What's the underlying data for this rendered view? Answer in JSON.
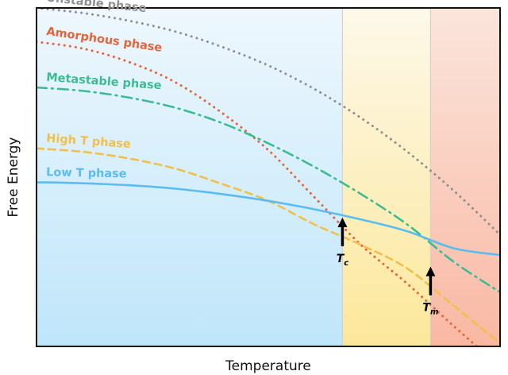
{
  "chart_data": {
    "type": "line",
    "title": "",
    "xlabel": "Temperature",
    "ylabel": "Free Energy",
    "xlim": [
      0,
      1
    ],
    "ylim": [
      0,
      1
    ],
    "grid": false,
    "legend": "none (series labelled inline on the chart)",
    "regions": [
      {
        "name": "below Tc",
        "x": [
          0,
          0.66
        ],
        "colors": [
          "#eef7fd",
          "#bfe6fa"
        ]
      },
      {
        "name": "Tc to Tm",
        "x": [
          0.66,
          0.85
        ],
        "colors": [
          "#fdf8ea",
          "#fce89a"
        ]
      },
      {
        "name": "above Tm",
        "x": [
          0.85,
          1
        ],
        "colors": [
          "#fbe5dc",
          "#f9b8a3"
        ]
      }
    ],
    "series": [
      {
        "name": "Unstable phase",
        "color": "#8f8f8f",
        "style": "dotted",
        "x": [
          0,
          0.1,
          0.2,
          0.3,
          0.4,
          0.5,
          0.6,
          0.7,
          0.8,
          0.9,
          1.0
        ],
        "y": [
          1.0,
          0.985,
          0.962,
          0.93,
          0.885,
          0.83,
          0.76,
          0.675,
          0.575,
          0.46,
          0.33
        ]
      },
      {
        "name": "Amorphous phase",
        "color": "#e4653a",
        "style": "dotted",
        "x": [
          0,
          0.1,
          0.2,
          0.3,
          0.4,
          0.5,
          0.6,
          0.7,
          0.8,
          0.9,
          1.0
        ],
        "y": [
          0.9,
          0.88,
          0.84,
          0.78,
          0.69,
          0.58,
          0.44,
          0.3,
          0.185,
          0.06,
          -0.06
        ]
      },
      {
        "name": "Metastable phase",
        "color": "#3dbb93",
        "style": "dash-dot",
        "x": [
          0,
          0.1,
          0.2,
          0.3,
          0.4,
          0.5,
          0.6,
          0.7,
          0.8,
          0.9,
          1.0
        ],
        "y": [
          0.765,
          0.755,
          0.735,
          0.705,
          0.66,
          0.6,
          0.53,
          0.45,
          0.36,
          0.25,
          0.16
        ]
      },
      {
        "name": "High T phase",
        "color": "#f0c04a",
        "style": "dashed",
        "x": [
          0,
          0.1,
          0.2,
          0.3,
          0.4,
          0.5,
          0.6,
          0.7,
          0.8,
          0.9,
          1.0
        ],
        "y": [
          0.585,
          0.575,
          0.555,
          0.525,
          0.48,
          0.43,
          0.36,
          0.3,
          0.23,
          0.12,
          0.01
        ]
      },
      {
        "name": "Low T phase",
        "color": "#5bbcf0",
        "style": "solid",
        "x": [
          0,
          0.1,
          0.2,
          0.3,
          0.4,
          0.5,
          0.6,
          0.7,
          0.8,
          0.9,
          1.0
        ],
        "y": [
          0.485,
          0.482,
          0.476,
          0.466,
          0.45,
          0.43,
          0.405,
          0.375,
          0.34,
          0.29,
          0.27
        ]
      }
    ],
    "annotations": [
      {
        "label": "T",
        "subscript": "c",
        "x": 0.66,
        "y": 0.39,
        "arrow": "up"
      },
      {
        "label": "T",
        "subscript": "m",
        "x": 0.85,
        "y": 0.245,
        "arrow": "up"
      }
    ]
  }
}
